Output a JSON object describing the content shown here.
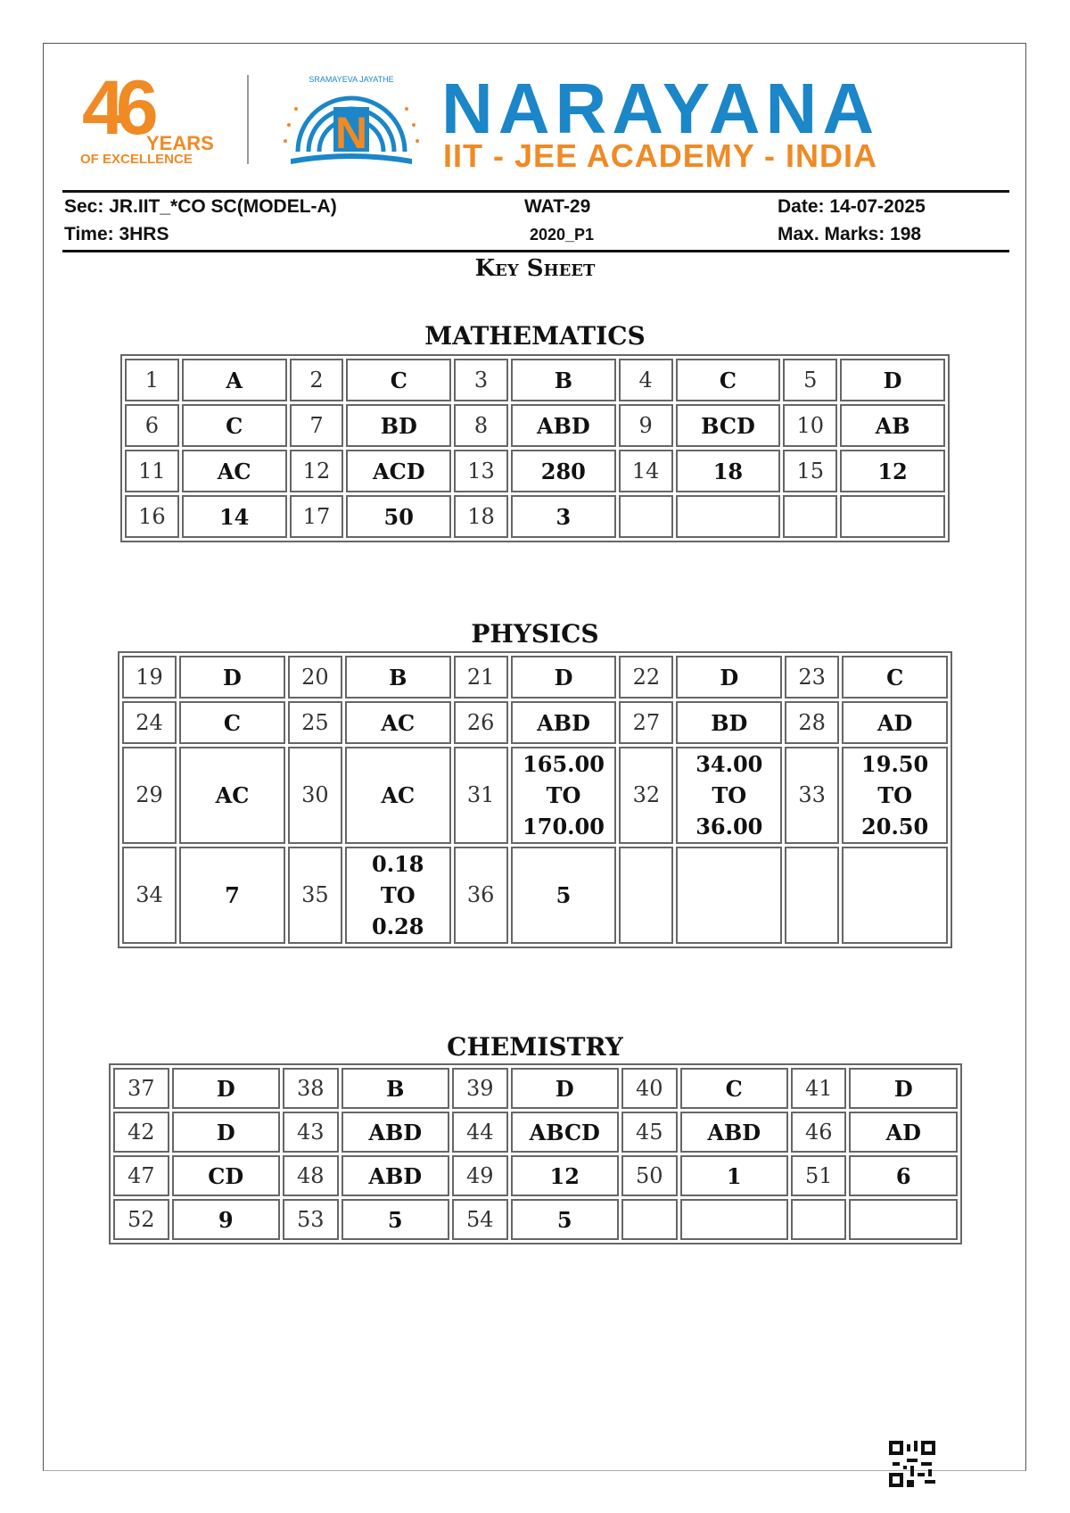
{
  "header": {
    "logo_years": "46",
    "logo_years_word": "YEARS",
    "logo_tagline": "OF EXCELLENCE",
    "emblem_motto": "SRAMAYEVA JAYATHE",
    "brand": "NARAYANA",
    "brand_sub": "IIT - JEE ACADEMY - INDIA",
    "colors": {
      "orange": "#f08a24",
      "blue": "#1b86c8"
    }
  },
  "meta": {
    "sec": "Sec: JR.IIT_*CO SC(MODEL-A)",
    "time": "Time: 3HRS",
    "test": "WAT-29",
    "paper": "2020_P1",
    "date": "Date: 14-07-2025",
    "max_marks": "Max. Marks: 198"
  },
  "title": "Key Sheet",
  "sections": [
    {
      "name": "MATHEMATICS",
      "rows": [
        [
          [
            "1",
            "A"
          ],
          [
            "2",
            "C"
          ],
          [
            "3",
            "B"
          ],
          [
            "4",
            "C"
          ],
          [
            "5",
            "D"
          ]
        ],
        [
          [
            "6",
            "C"
          ],
          [
            "7",
            "BD"
          ],
          [
            "8",
            "ABD"
          ],
          [
            "9",
            "BCD"
          ],
          [
            "10",
            "AB"
          ]
        ],
        [
          [
            "11",
            "AC"
          ],
          [
            "12",
            "ACD"
          ],
          [
            "13",
            "280"
          ],
          [
            "14",
            "18"
          ],
          [
            "15",
            "12"
          ]
        ],
        [
          [
            "16",
            "14"
          ],
          [
            "17",
            "50"
          ],
          [
            "18",
            "3"
          ],
          [
            "",
            ""
          ],
          [
            "",
            ""
          ]
        ]
      ]
    },
    {
      "name": "PHYSICS",
      "rows": [
        [
          [
            "19",
            "D"
          ],
          [
            "20",
            "B"
          ],
          [
            "21",
            "D"
          ],
          [
            "22",
            "D"
          ],
          [
            "23",
            "C"
          ]
        ],
        [
          [
            "24",
            "C"
          ],
          [
            "25",
            "AC"
          ],
          [
            "26",
            "ABD"
          ],
          [
            "27",
            "BD"
          ],
          [
            "28",
            "AD"
          ]
        ],
        [
          [
            "29",
            "AC"
          ],
          [
            "30",
            "AC"
          ],
          [
            "31",
            "165.00\nTO\n170.00"
          ],
          [
            "32",
            "34.00\nTO\n36.00"
          ],
          [
            "33",
            "19.50\nTO\n20.50"
          ]
        ],
        [
          [
            "34",
            "7"
          ],
          [
            "35",
            "0.18\nTO\n0.28"
          ],
          [
            "36",
            "5"
          ],
          [
            "",
            ""
          ],
          [
            "",
            ""
          ]
        ]
      ]
    },
    {
      "name": "CHEMISTRY",
      "rows": [
        [
          [
            "37",
            "D"
          ],
          [
            "38",
            "B"
          ],
          [
            "39",
            "D"
          ],
          [
            "40",
            "C"
          ],
          [
            "41",
            "D"
          ]
        ],
        [
          [
            "42",
            "D"
          ],
          [
            "43",
            "ABD"
          ],
          [
            "44",
            "ABCD"
          ],
          [
            "45",
            "ABD"
          ],
          [
            "46",
            "AD"
          ]
        ],
        [
          [
            "47",
            "CD"
          ],
          [
            "48",
            "ABD"
          ],
          [
            "49",
            "12"
          ],
          [
            "50",
            "1"
          ],
          [
            "51",
            "6"
          ]
        ],
        [
          [
            "52",
            "9"
          ],
          [
            "53",
            "5"
          ],
          [
            "54",
            "5"
          ],
          [
            "",
            ""
          ],
          [
            "",
            ""
          ]
        ]
      ]
    }
  ]
}
